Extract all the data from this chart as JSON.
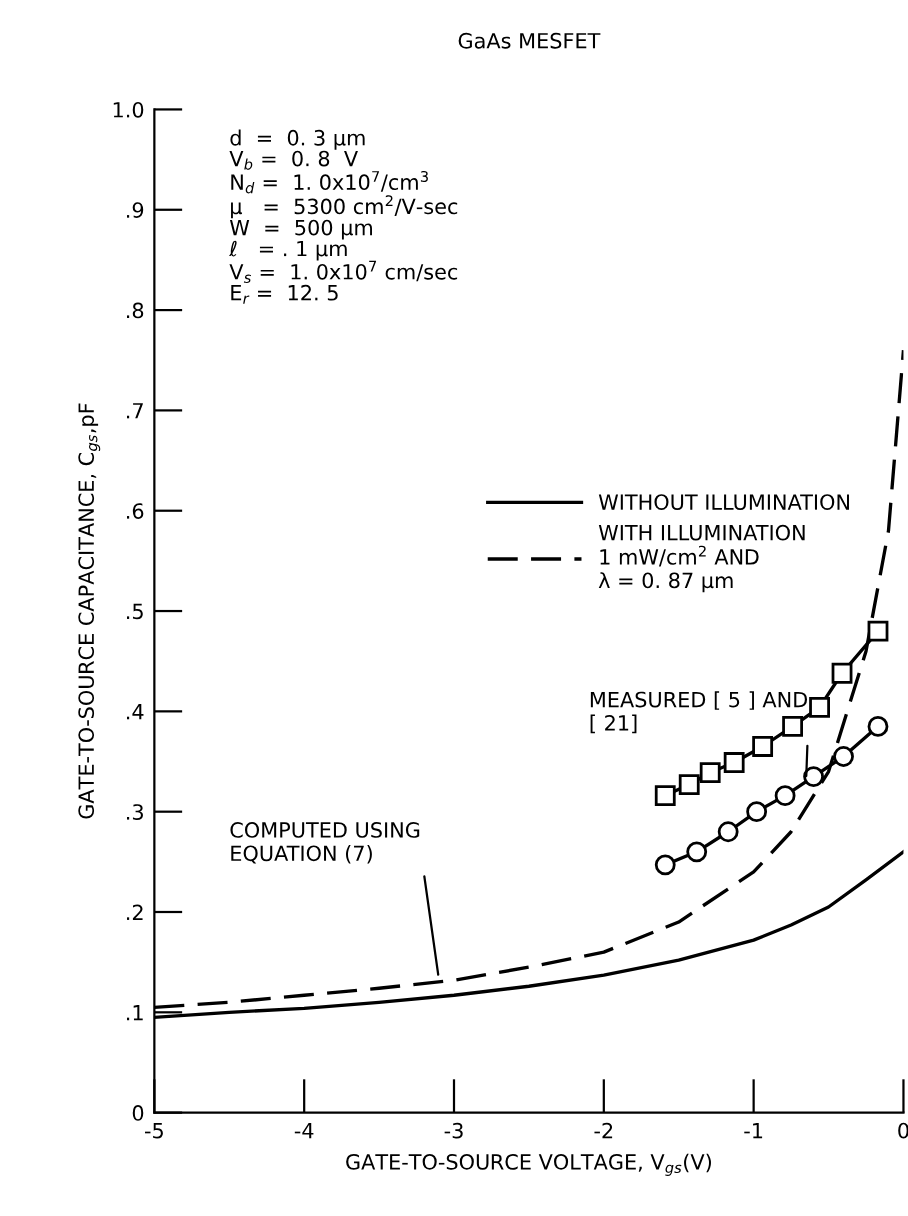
{
  "chart_data": {
    "type": "line",
    "title": "GaAs MESFET",
    "xlabel": "GATE-TO-SOURCE VOLTAGE, V$_{gs}$(V)",
    "ylabel": "GATE-TO-SOURCE CAPACITANCE, C$_{gs}$,pF",
    "xlim": [
      -5,
      0
    ],
    "ylim": [
      0,
      1.0
    ],
    "xticks": [
      -5,
      -4,
      -3,
      -2,
      -1,
      0
    ],
    "yticks": [
      0,
      {
        "value": 0.1,
        "label": ".1"
      },
      {
        "value": 0.2,
        "label": ".2"
      },
      {
        "value": 0.3,
        "label": ".3"
      },
      {
        "value": 0.4,
        "label": ".4"
      },
      {
        "value": 0.5,
        "label": ".5"
      },
      {
        "value": 0.6,
        "label": ".6"
      },
      {
        "value": 0.7,
        "label": ".7"
      },
      {
        "value": 0.8,
        "label": ".8"
      },
      {
        "value": 0.9,
        "label": ".9"
      },
      {
        "value": 1.0,
        "label": "1.0"
      }
    ],
    "grid": false,
    "legend": "right",
    "series": [
      {
        "name": "WITHOUT ILLUMINATION",
        "color": "#000000",
        "line_style": "solid",
        "marker": "none",
        "x": [
          -5,
          -4.5,
          -4,
          -3.5,
          -3,
          -2.5,
          -2,
          -1.5,
          -1,
          -0.75,
          -0.5,
          -0.25,
          0
        ],
        "values": [
          0.095,
          0.1,
          0.104,
          0.11,
          0.117,
          0.126,
          0.137,
          0.152,
          0.172,
          0.187,
          0.205,
          0.232,
          0.26
        ]
      },
      {
        "name": "WITH ILLUMINATION\n1 mW/cm$^{2}$ AND\nλ = 0. 87 μm",
        "color": "#000000",
        "line_style": "dashed",
        "marker": "none",
        "x": [
          -5,
          -4.5,
          -4,
          -3.5,
          -3,
          -2.5,
          -2,
          -1.5,
          -1,
          -0.75,
          -0.5,
          -0.25,
          -0.1,
          0
        ],
        "values": [
          0.105,
          0.11,
          0.117,
          0.124,
          0.132,
          0.145,
          0.16,
          0.19,
          0.24,
          0.28,
          0.34,
          0.46,
          0.58,
          0.76
        ]
      },
      {
        "color": "#000000",
        "line_style": "solid",
        "marker": "square",
        "x": [
          -1.59,
          -1.43,
          -1.29,
          -1.13,
          -0.94,
          -0.74,
          -0.56,
          -0.41,
          -0.17
        ],
        "values": [
          0.316,
          0.327,
          0.339,
          0.349,
          0.365,
          0.385,
          0.404,
          0.438,
          0.48
        ]
      },
      {
        "color": "#000000",
        "line_style": "solid",
        "marker": "circle",
        "x": [
          -1.59,
          -1.38,
          -1.17,
          -0.98,
          -0.79,
          -0.6,
          -0.4,
          -0.17
        ],
        "values": [
          0.247,
          0.26,
          0.28,
          0.3,
          0.316,
          0.335,
          0.355,
          0.385
        ]
      }
    ],
    "annotations": [
      "d  =  0. 3 μm\nV$_{b}$ =  0. 8  V\nN$_{d}$ =  1. 0x10$^{7}$/cm$^{3}$\nμ   =  5300 cm$^{2}$/V-sec\nW  =  500 μm\nℓ   = . 1 μm\nV$_{s}$ =  1. 0x10$^{7}$ cm/sec\nE$_{r}$ =  12. 5",
      {
        "text": "MEASURED [ 5 ] AND\n[ 21]",
        "x": -0.65,
        "y": 0.33
      },
      {
        "text": "COMPUTED USING\nEQUATION (7)",
        "x": -3.1,
        "y": 0.132
      }
    ]
  }
}
